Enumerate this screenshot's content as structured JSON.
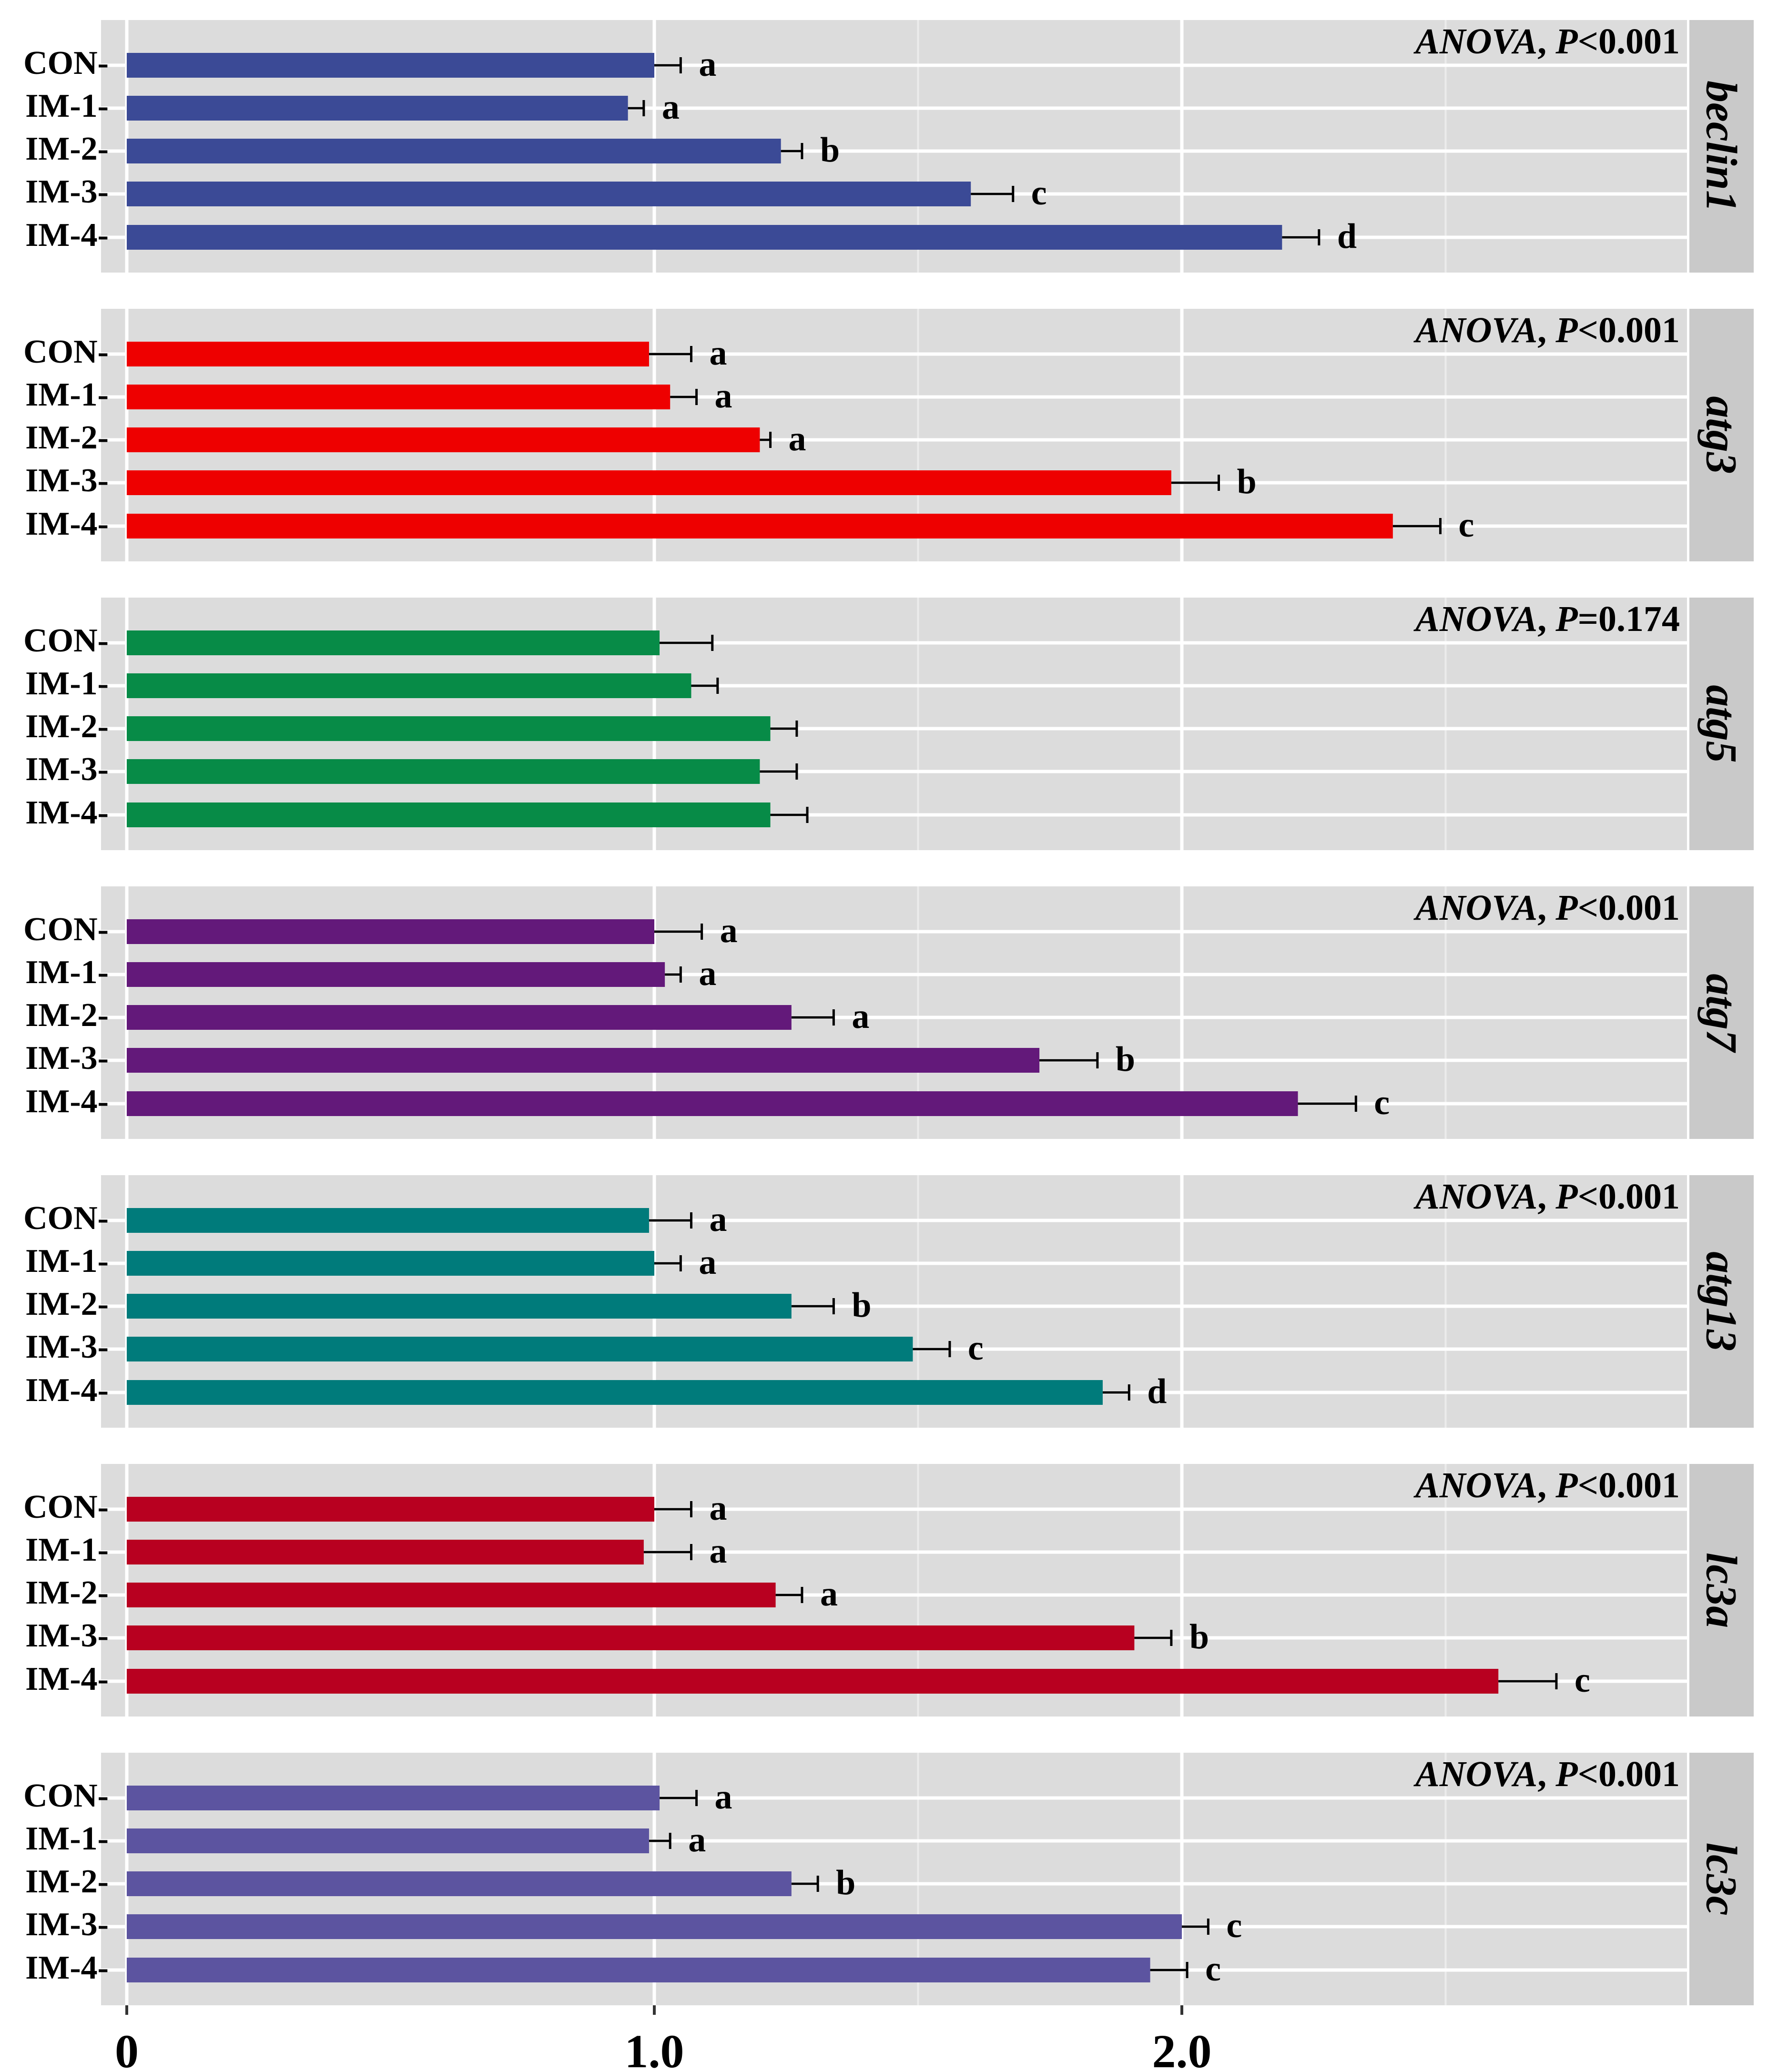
{
  "chart_data": {
    "type": "bar",
    "orientation": "horizontal",
    "facet": "vertical",
    "x_axis": {
      "range": [
        0,
        3.0
      ],
      "ticks": [
        0,
        1.0,
        2.0
      ],
      "tick_labels": [
        "0",
        "1.0",
        "2.0"
      ],
      "minor_gridlines": [
        1.5,
        2.5
      ]
    },
    "categories": [
      "CON",
      "IM-1",
      "IM-2",
      "IM-3",
      "IM-4"
    ],
    "tick_suffix": "-",
    "panels": [
      {
        "gene": "beclin1",
        "anova": {
          "prefix": "ANOVA",
          "sep": ", ",
          "p": "P",
          "rest": "<0.001"
        },
        "color": "#3b4a96",
        "values": [
          1.0,
          0.95,
          1.24,
          1.6,
          2.19
        ],
        "errors": [
          0.05,
          0.03,
          0.04,
          0.08,
          0.07
        ],
        "letters": [
          "a",
          "a",
          "b",
          "c",
          "d"
        ]
      },
      {
        "gene": "atg3",
        "anova": {
          "prefix": "ANOVA",
          "sep": ", ",
          "p": "P",
          "rest": "<0.001"
        },
        "color": "#ee0000",
        "values": [
          0.99,
          1.03,
          1.2,
          1.98,
          2.4
        ],
        "errors": [
          0.08,
          0.05,
          0.02,
          0.09,
          0.09
        ],
        "letters": [
          "a",
          "a",
          "a",
          "b",
          "c"
        ]
      },
      {
        "gene": "atg5",
        "anova": {
          "prefix": "ANOVA",
          "sep": ", ",
          "p": "P",
          "rest": "=0.174"
        },
        "color": "#078b47",
        "values": [
          1.01,
          1.07,
          1.22,
          1.2,
          1.22
        ],
        "errors": [
          0.1,
          0.05,
          0.05,
          0.07,
          0.07
        ],
        "letters": [
          "",
          "",
          "",
          "",
          ""
        ]
      },
      {
        "gene": "atg7",
        "anova": {
          "prefix": "ANOVA",
          "sep": ", ",
          "p": "P",
          "rest": "<0.001"
        },
        "color": "#63197a",
        "values": [
          1.0,
          1.02,
          1.26,
          1.73,
          2.22
        ],
        "errors": [
          0.09,
          0.03,
          0.08,
          0.11,
          0.11
        ],
        "letters": [
          "a",
          "a",
          "a",
          "b",
          "c"
        ]
      },
      {
        "gene": "atg13",
        "anova": {
          "prefix": "ANOVA",
          "sep": ", ",
          "p": "P",
          "rest": "<0.001"
        },
        "color": "#007b7b",
        "values": [
          0.99,
          1.0,
          1.26,
          1.49,
          1.85
        ],
        "errors": [
          0.08,
          0.05,
          0.08,
          0.07,
          0.05
        ],
        "letters": [
          "a",
          "a",
          "b",
          "c",
          "d"
        ]
      },
      {
        "gene": "lc3a",
        "anova": {
          "prefix": "ANOVA",
          "sep": ", ",
          "p": "P",
          "rest": "<0.001"
        },
        "color": "#b80020",
        "values": [
          1.0,
          0.98,
          1.23,
          1.91,
          2.6
        ],
        "errors": [
          0.07,
          0.09,
          0.05,
          0.07,
          0.11
        ],
        "letters": [
          "a",
          "a",
          "a",
          "b",
          "c"
        ]
      },
      {
        "gene": "lc3c",
        "anova": {
          "prefix": "ANOVA",
          "sep": ", ",
          "p": "P",
          "rest": "<0.001"
        },
        "color": "#5c54a0",
        "values": [
          1.01,
          0.99,
          1.26,
          2.0,
          1.94
        ],
        "errors": [
          0.07,
          0.04,
          0.05,
          0.05,
          0.07
        ],
        "letters": [
          "a",
          "a",
          "b",
          "c",
          "c"
        ]
      }
    ]
  },
  "colors": {
    "panel_bg": "#dcdcdc",
    "strip_bg": "#c9c9c9",
    "grid_major": "#ffffff",
    "grid_minor": "#ebebeb"
  }
}
